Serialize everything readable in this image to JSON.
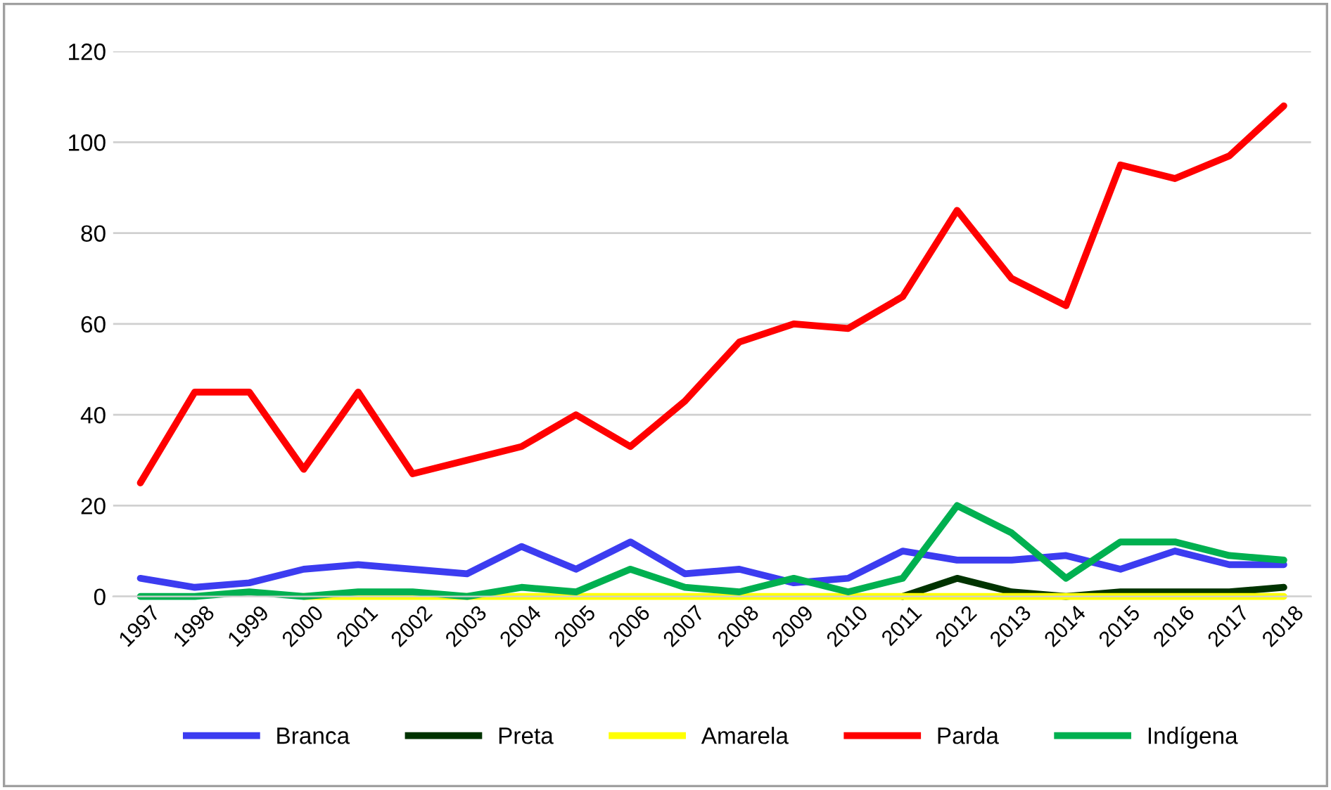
{
  "chart_data": {
    "type": "line",
    "categories": [
      "1997",
      "1998",
      "1999",
      "2000",
      "2001",
      "2002",
      "2003",
      "2004",
      "2005",
      "2006",
      "2007",
      "2008",
      "2009",
      "2010",
      "2011",
      "2012",
      "2013",
      "2014",
      "2015",
      "2016",
      "2017",
      "2018"
    ],
    "series": [
      {
        "name": "Branca",
        "color": "#3c3cf0",
        "values": [
          4,
          2,
          3,
          6,
          7,
          6,
          5,
          11,
          6,
          12,
          5,
          6,
          3,
          4,
          10,
          8,
          8,
          9,
          6,
          10,
          7,
          7
        ]
      },
      {
        "name": "Preta",
        "color": "#003300",
        "values": [
          null,
          null,
          null,
          null,
          null,
          null,
          null,
          null,
          null,
          null,
          null,
          null,
          null,
          null,
          0,
          4,
          1,
          0,
          1,
          1,
          1,
          2
        ]
      },
      {
        "name": "Amarela",
        "color": "#ffff00",
        "values": [
          null,
          null,
          null,
          0,
          0,
          0,
          0,
          0,
          0,
          0,
          0,
          0,
          0,
          0,
          0,
          0,
          0,
          0,
          0,
          0,
          0,
          0
        ]
      },
      {
        "name": "Parda",
        "color": "#ff0000",
        "values": [
          25,
          45,
          45,
          28,
          45,
          27,
          30,
          33,
          40,
          33,
          43,
          56,
          60,
          59,
          66,
          85,
          70,
          64,
          95,
          92,
          97,
          108
        ]
      },
      {
        "name": "Indígena",
        "color": "#00b050",
        "values": [
          0,
          0,
          1,
          0,
          1,
          1,
          0,
          2,
          1,
          6,
          2,
          1,
          4,
          1,
          4,
          20,
          14,
          4,
          12,
          12,
          9,
          8
        ]
      }
    ],
    "ylim": [
      0,
      120
    ],
    "yticks": [
      0,
      20,
      40,
      60,
      80,
      100,
      120
    ],
    "grid": "y",
    "legend": "bottom",
    "marker": "none",
    "line_style": "solid"
  }
}
